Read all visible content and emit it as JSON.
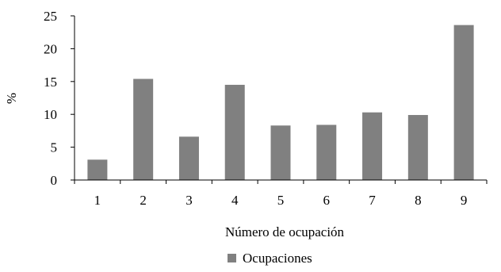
{
  "chart_data": {
    "type": "bar",
    "title": "",
    "xlabel": "Número de ocupación",
    "ylabel": "%",
    "categories": [
      "1",
      "2",
      "3",
      "4",
      "5",
      "6",
      "7",
      "8",
      "9"
    ],
    "series": [
      {
        "name": "Ocupaciones",
        "values": [
          3.1,
          15.4,
          6.6,
          14.5,
          8.3,
          8.4,
          10.3,
          9.9,
          23.6
        ],
        "color": "#808080"
      }
    ],
    "ylim": [
      0,
      25
    ],
    "yticks": [
      "0",
      "5",
      "10",
      "15",
      "20",
      "25"
    ],
    "grid": false,
    "legend": "bottom-center"
  }
}
